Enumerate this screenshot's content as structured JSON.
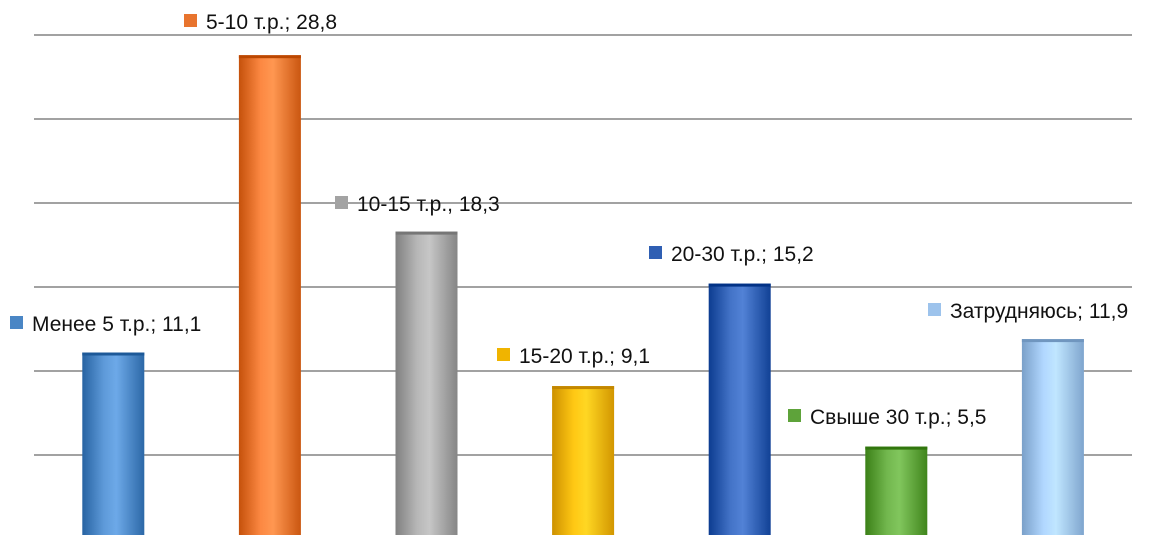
{
  "chart_data": {
    "type": "bar",
    "title": "",
    "xlabel": "",
    "ylabel": "",
    "ylim": [
      0,
      30
    ],
    "grid": true,
    "legend": "none",
    "categories": [
      "Менее 5 т.р.",
      "5-10 т.р.",
      "10-15 т.р.",
      "15-20 т.р.",
      "20-30 т.р.",
      "Свыше 30 т.р.",
      "Затрудняюсь"
    ],
    "values": [
      11.1,
      28.8,
      18.3,
      9.1,
      15.2,
      5.5,
      11.9
    ],
    "labels": [
      "Менее 5 т.р.; 11,1",
      "5-10 т.р.; 28,8",
      "10-15 т.р., 18,3",
      "15-20 т.р.; 9,1",
      "20-30 т.р.; 15,2",
      "Свыше 30 т.р.; 5,5",
      "Затрудняюсь; 11,9"
    ],
    "colors": [
      "#4a86c5",
      "#e8742e",
      "#a3a3a3",
      "#f0b400",
      "#2f5fb3",
      "#5ea33a",
      "#9dc3ec"
    ]
  }
}
